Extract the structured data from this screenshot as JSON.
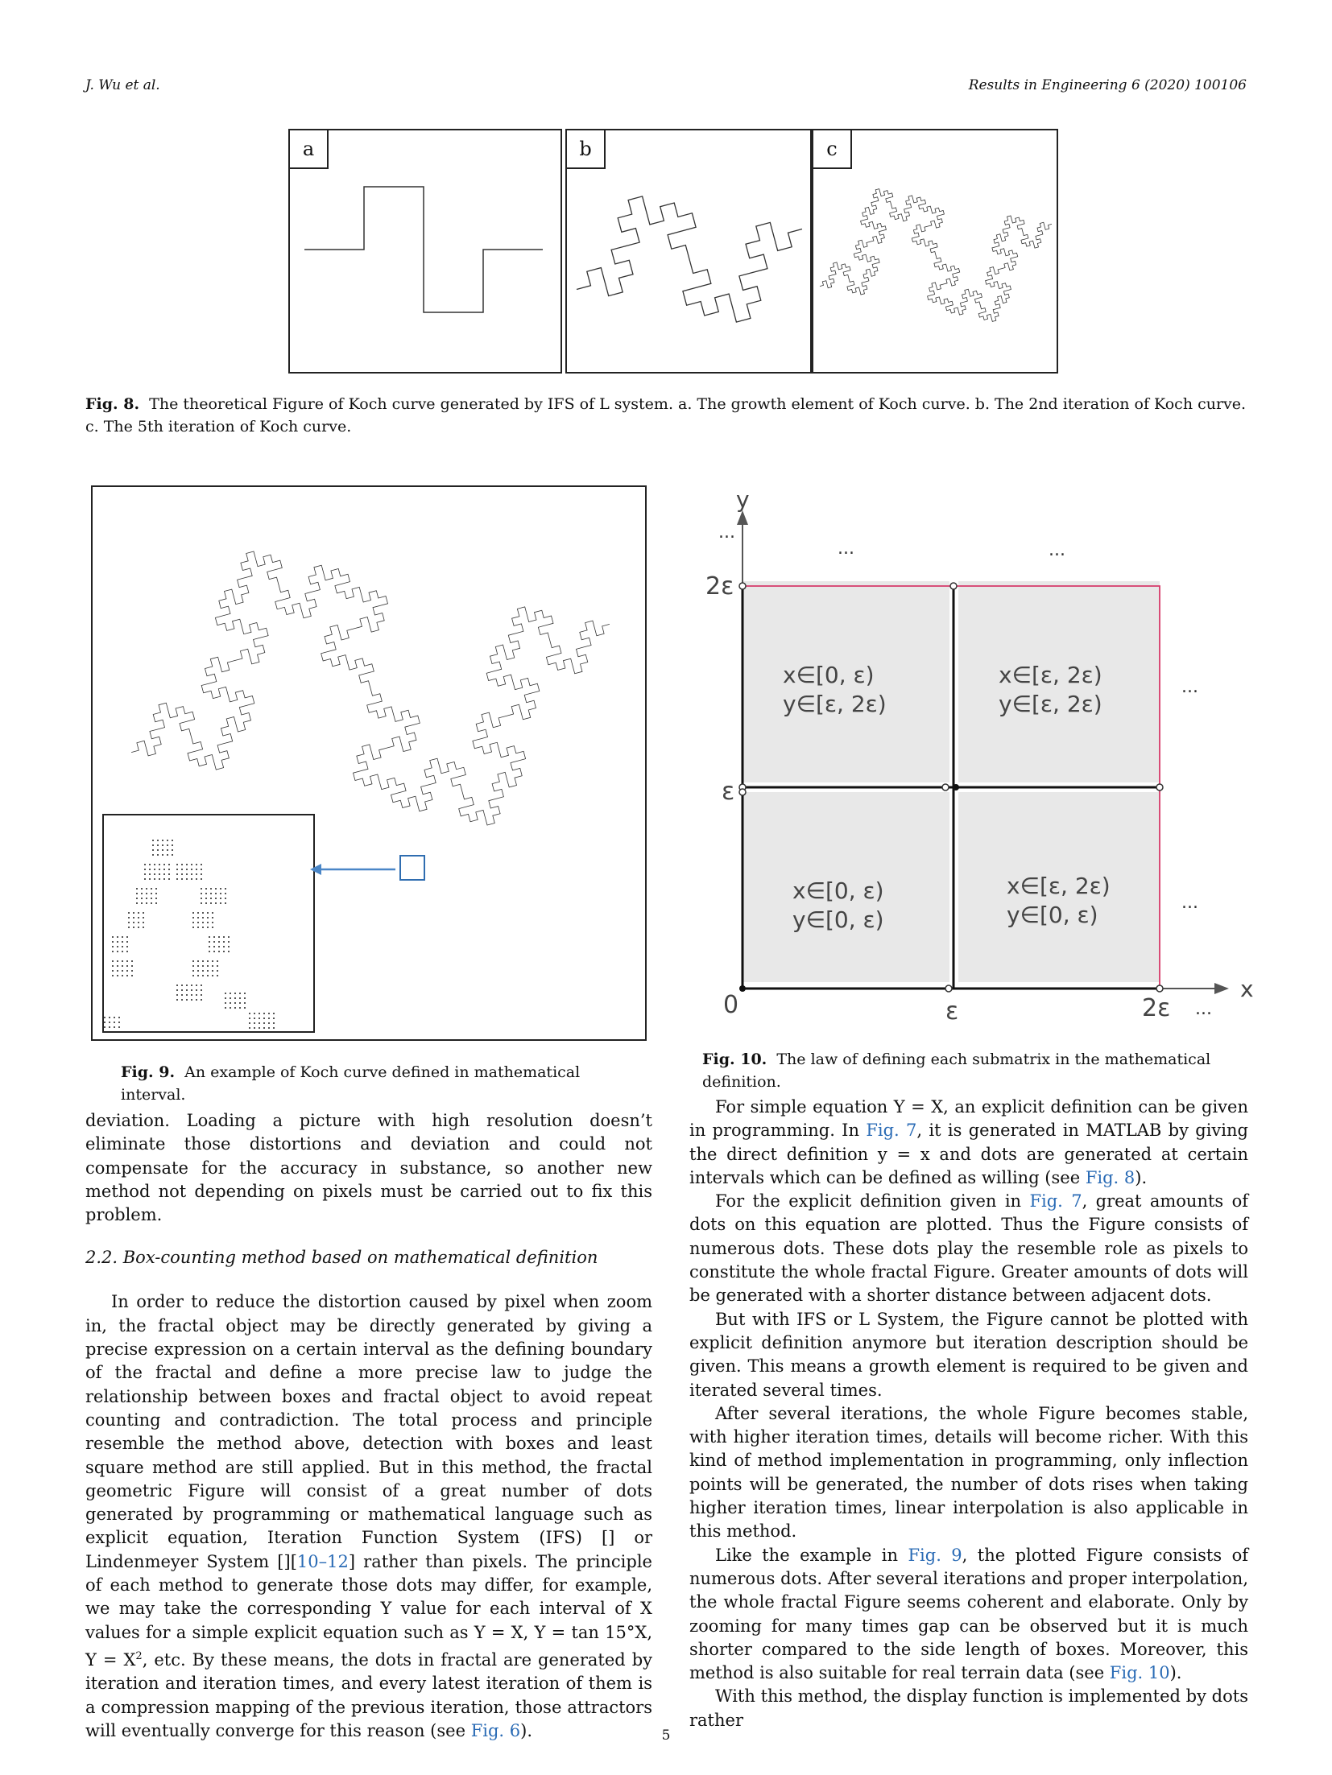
{
  "header": {
    "left": "J. Wu et al.",
    "right": "Results in Engineering 6 (2020) 100106"
  },
  "fig8": {
    "panels": [
      "a",
      "b",
      "c"
    ],
    "caption_label": "Fig. 8.",
    "caption_text": "The theoretical Figure of Koch curve generated by IFS of L system. a. The growth element of Koch curve. b. The 2nd iteration of Koch curve. c. The 5th iteration of Koch curve."
  },
  "fig9": {
    "caption_label": "Fig. 9.",
    "caption_text": "An example of Koch curve defined in mathematical interval."
  },
  "fig10": {
    "caption_label": "Fig. 10.",
    "caption_text": "The law of defining each submatrix in the mathematical definition.",
    "y_axis": "y",
    "x_axis": "x",
    "tick_0": "0",
    "tick_eps": "ε",
    "tick_2eps": "2ε",
    "ellipsis": "...",
    "cells": {
      "top_left": [
        "x∈[0, ε)",
        "y∈[ε, 2ε)"
      ],
      "top_right": [
        "x∈[ε, 2ε)",
        "y∈[ε, 2ε)"
      ],
      "bottom_left": [
        "x∈[0, ε)",
        "y∈[0, ε)"
      ],
      "bottom_right": [
        "x∈[ε, 2ε)",
        "y∈[0, ε)"
      ]
    }
  },
  "left_col": {
    "p1": "deviation. Loading a picture with high resolution doesn’t eliminate those distortions and deviation and could not compensate for the accuracy in substance, so another new method not depending on pixels must be carried out to fix this problem.",
    "section": "2.2.  Box-counting method based on mathematical definition",
    "p2_a": "In order to reduce the distortion caused by pixel when zoom in, the fractal object may be directly generated by giving a precise expression on a certain interval as the defining boundary of the fractal and define a more precise law to judge the relationship between boxes and fractal object to avoid repeat counting and contradiction. The total process and principle resemble the method above, detection with boxes and least square method are still applied. But in this method, the fractal geometric Figure will consist of a great number of dots generated by programming or mathematical language such as explicit equation, Iteration Function System (IFS) [] or Lindenmeyer System [][",
    "p2_ref": "10–12",
    "p2_b": "] rather than pixels. The principle of each method to generate those dots may differ, for example, we may take the corresponding Y value for each interval of X values for a simple explicit equation such as Y = X, Y = tan 15°X, Y = X",
    "p2_sup": "2",
    "p2_c": ", etc. By these means, the dots in fractal are generated by iteration and iteration times, and every latest iteration of them is a compression mapping of the previous iteration, those attractors will eventually converge for this reason (see ",
    "p2_link": "Fig. 6",
    "p2_d": ")."
  },
  "right_col": {
    "p1_a": "For simple equation Y = X, an explicit definition can be given in programming. In ",
    "p1_link1": "Fig. 7",
    "p1_b": ", it is generated in MATLAB by giving the direct definition y = x and dots are generated at certain intervals which can be defined as willing (see ",
    "p1_link2": "Fig. 8",
    "p1_c": ").",
    "p2_a": "For the explicit definition given in ",
    "p2_link": "Fig. 7",
    "p2_b": ", great amounts of dots on this equation are plotted. Thus the Figure consists of numerous dots. These dots play the resemble role as pixels to constitute the whole fractal Figure. Greater amounts of dots will be generated with a shorter distance between adjacent dots.",
    "p3": "But with IFS or L System, the Figure cannot be plotted with explicit definition anymore but iteration description should be given. This means a growth element is required to be given and iterated several times.",
    "p4": "After several iterations, the whole Figure becomes stable, with higher iteration times, details will become richer. With this kind of method implementation in programming, only inflection points will be generated, the number of dots rises when taking higher iteration times, linear interpolation is also applicable in this method.",
    "p5_a": "Like the example in ",
    "p5_link1": "Fig. 9",
    "p5_b": ", the plotted Figure consists of numerous dots. After several iterations and proper interpolation, the whole fractal Figure seems coherent and elaborate. Only by zooming for many times gap can be observed but it is much shorter compared to the side length of boxes. Moreover, this method is also suitable for real terrain data (see ",
    "p5_link2": "Fig. 10",
    "p5_c": ").",
    "p6": "With this method, the display function is implemented by dots rather"
  },
  "page_number": "5"
}
